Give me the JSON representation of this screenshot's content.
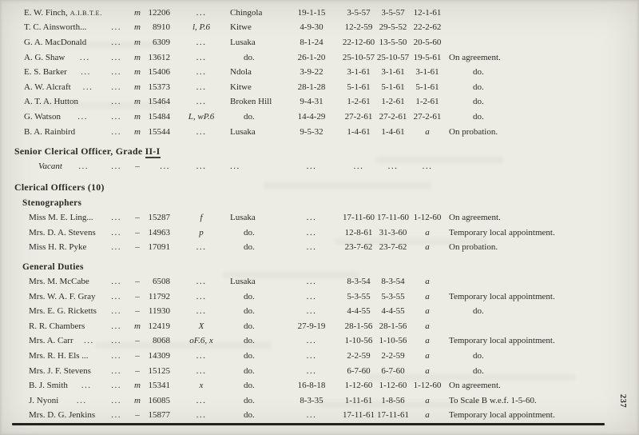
{
  "page": {
    "number": "237"
  },
  "headings": {
    "senior_prefix": "Senior Clerical Officer, Grade ",
    "senior_grade": "II-I",
    "clerical": "Clerical Officers (10)",
    "stenographers": "Stenographers",
    "general": "General Duties"
  },
  "rows_top": [
    {
      "name": "E. W. Finch,",
      "suffix": "A.I.B.T.E.",
      "leaders": 0,
      "status": "m",
      "no": "12206",
      "code": "...",
      "station": "Chingola",
      "d1": "19-1-15",
      "d2": "3-5-57",
      "d3": "3-5-57",
      "d4": "12-1-61",
      "remarks": ""
    },
    {
      "name": "T. C. Ainsworth...",
      "leaders": 1,
      "status": "m",
      "no": "8910",
      "code": "l, P.6",
      "station": "Kitwe",
      "d1": "4-9-30",
      "d2": "12-2-59",
      "d3": "29-5-52",
      "d4": "22-2-62",
      "remarks": ""
    },
    {
      "name": "G. A. MacDonald",
      "leaders": 1,
      "status": "m",
      "no": "6309",
      "code": "...",
      "station": "Lusaka",
      "d1": "8-1-24",
      "d2": "22-12-60",
      "d3": "13-5-50",
      "d4": "20-5-60",
      "remarks": ""
    },
    {
      "name": "A. G. Shaw",
      "leaders": 2,
      "status": "m",
      "no": "13612",
      "code": "...",
      "station": "do.",
      "d1": "26-1-20",
      "d2": "25-10-57",
      "d3": "25-10-57",
      "d4": "19-5-61",
      "remarks": "On agreement."
    },
    {
      "name": "E. S. Barker",
      "leaders": 2,
      "status": "m",
      "no": "15406",
      "code": "...",
      "station": "Ndola",
      "d1": "3-9-22",
      "d2": "3-1-61",
      "d3": "3-1-61",
      "d4": "3-1-61",
      "remarks": "do."
    },
    {
      "name": "A. W. Alcraft",
      "leaders": 2,
      "status": "m",
      "no": "15373",
      "code": "...",
      "station": "Kitwe",
      "d1": "28-1-28",
      "d2": "5-1-61",
      "d3": "5-1-61",
      "d4": "5-1-61",
      "remarks": "do."
    },
    {
      "name": "A. T. A. Hutton",
      "leaders": 1,
      "status": "m",
      "no": "15464",
      "code": "...",
      "station": "Broken Hill",
      "d1": "9-4-31",
      "d2": "1-2-61",
      "d3": "1-2-61",
      "d4": "1-2-61",
      "remarks": "do."
    },
    {
      "name": "G. Watson",
      "leaders": 2,
      "status": "m",
      "no": "15484",
      "code": "L, wP.6",
      "station": "do.",
      "d1": "14-4-29",
      "d2": "27-2-61",
      "d3": "27-2-61",
      "d4": "27-2-61",
      "remarks": "do."
    },
    {
      "name": "B. A. Rainbird",
      "leaders": 1,
      "status": "m",
      "no": "15544",
      "code": "...",
      "station": "Lusaka",
      "d1": "9-5-32",
      "d2": "1-4-61",
      "d3": "1-4-61",
      "d4": "a",
      "remarks": "On probation."
    }
  ],
  "row_vacant": {
    "name": "Vacant",
    "italic": true,
    "leaders": 2,
    "status": "–",
    "no": "...",
    "code": "...",
    "station": "...",
    "d1": "...",
    "d2": "...",
    "d3": "...",
    "d4": "...",
    "remarks": ""
  },
  "rows_stenographers": [
    {
      "name": "Miss M. E. Ling...",
      "leaders": 1,
      "status": "–",
      "no": "15287",
      "code": "f",
      "station": "Lusaka",
      "d1": "...",
      "d2": "17-11-60",
      "d3": "17-11-60",
      "d4": "1-12-60",
      "remarks": "On agreement."
    },
    {
      "name": "Mrs. D. A. Stevens",
      "leaders": 1,
      "status": "–",
      "no": "14963",
      "code": "p",
      "station": "do.",
      "d1": "...",
      "d2": "12-8-61",
      "d3": "31-3-60",
      "d4": "a",
      "remarks": "Temporary local appointment."
    },
    {
      "name": "Miss H. R. Pyke",
      "leaders": 1,
      "status": "–",
      "no": "17091",
      "code": "...",
      "station": "do.",
      "d1": "...",
      "d2": "23-7-62",
      "d3": "23-7-62",
      "d4": "a",
      "remarks": "On probation."
    }
  ],
  "rows_general": [
    {
      "name": "Mrs. M. McCabe",
      "leaders": 1,
      "status": "–",
      "no": "6508",
      "code": "...",
      "station": "Lusaka",
      "d1": "...",
      "d2": "8-3-54",
      "d3": "8-3-54",
      "d4": "a",
      "remarks": ""
    },
    {
      "name": "Mrs. W. A. F. Gray",
      "leaders": 1,
      "status": "–",
      "no": "11792",
      "code": "...",
      "station": "do.",
      "d1": "...",
      "d2": "5-3-55",
      "d3": "5-3-55",
      "d4": "a",
      "remarks": "Temporary local appointment."
    },
    {
      "name": "Mrs. E. G. Ricketts",
      "leaders": 1,
      "status": "–",
      "no": "11930",
      "code": "...",
      "station": "do.",
      "d1": "...",
      "d2": "4-4-55",
      "d3": "4-4-55",
      "d4": "a",
      "remarks": "do."
    },
    {
      "name": "R. R. Chambers",
      "leaders": 1,
      "status": "m",
      "no": "12419",
      "code": "X",
      "station": "do.",
      "d1": "27-9-19",
      "d2": "28-1-56",
      "d3": "28-1-56",
      "d4": "a",
      "remarks": ""
    },
    {
      "name": "Mrs. A. Carr",
      "leaders": 2,
      "status": "–",
      "no": "8068",
      "code": "oF.6, x",
      "station": "do.",
      "d1": "...",
      "d2": "1-10-56",
      "d3": "1-10-56",
      "d4": "a",
      "remarks": "Temporary local appointment."
    },
    {
      "name": "Mrs. R. H. Els ...",
      "leaders": 1,
      "status": "–",
      "no": "14309",
      "code": "...",
      "station": "do.",
      "d1": "...",
      "d2": "2-2-59",
      "d3": "2-2-59",
      "d4": "a",
      "remarks": "do."
    },
    {
      "name": "Mrs. J. F. Stevens",
      "leaders": 1,
      "status": "–",
      "no": "15125",
      "code": "...",
      "station": "do.",
      "d1": "...",
      "d2": "6-7-60",
      "d3": "6-7-60",
      "d4": "a",
      "remarks": "do."
    },
    {
      "name": "B. J. Smith",
      "leaders": 2,
      "status": "m",
      "no": "15341",
      "code": "x",
      "station": "do.",
      "d1": "16-8-18",
      "d2": "1-12-60",
      "d3": "1-12-60",
      "d4": "1-12-60",
      "remarks": "On agreement."
    },
    {
      "name": "J. Nyoni",
      "leaders": 2,
      "status": "m",
      "no": "16085",
      "code": "...",
      "station": "do.",
      "d1": "8-3-35",
      "d2": "1-11-61",
      "d3": "1-8-56",
      "d4": "a",
      "remarks": "To Scale B w.e.f. 1-5-60."
    },
    {
      "name": "Mrs. D. G. Jenkins",
      "leaders": 1,
      "status": "–",
      "no": "15877",
      "code": "...",
      "station": "do.",
      "d1": "...",
      "d2": "17-11-61",
      "d3": "17-11-61",
      "d4": "a",
      "remarks": "Temporary local appointment."
    }
  ]
}
